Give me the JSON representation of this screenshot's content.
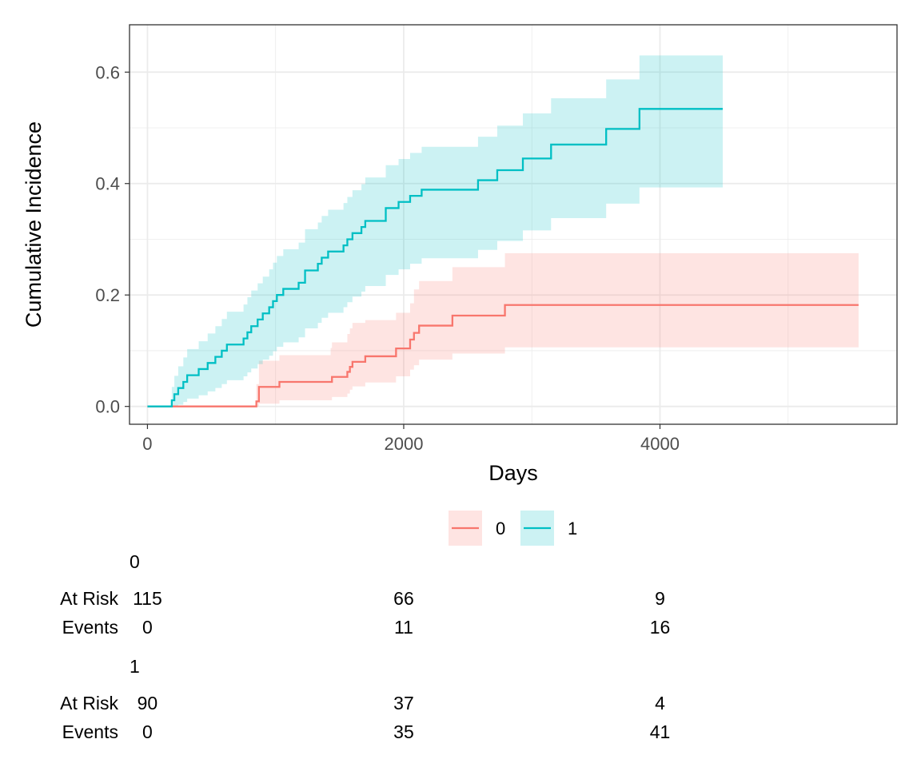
{
  "chart_data": {
    "type": "line",
    "subtype": "step-cumulative-incidence-with-ci",
    "xlabel": "Days",
    "ylabel": "Cumulative Incidence",
    "xlim": [
      -140,
      5850
    ],
    "ylim": [
      -0.032,
      0.685
    ],
    "x_ticks": [
      0,
      2000,
      4000
    ],
    "x_tick_labels": [
      "0",
      "2000",
      "4000"
    ],
    "x_minor_ticks": [
      1000,
      3000,
      5000
    ],
    "y_ticks": [
      0.0,
      0.2,
      0.4,
      0.6
    ],
    "y_tick_labels": [
      "0.0",
      "0.2",
      "0.4",
      "0.6"
    ],
    "y_minor_ticks": [
      0.1,
      0.3,
      0.5
    ],
    "grid": true,
    "legend_position": "bottom",
    "series": [
      {
        "name": "0",
        "color": "#F8766D",
        "fill": "#F8766D",
        "steps": [
          [
            0,
            0.0
          ],
          [
            820,
            0.0
          ],
          [
            850,
            0.009
          ],
          [
            870,
            0.035
          ],
          [
            1030,
            0.044
          ],
          [
            1430,
            0.044
          ],
          [
            1440,
            0.053
          ],
          [
            1560,
            0.062
          ],
          [
            1580,
            0.071
          ],
          [
            1600,
            0.08
          ],
          [
            1700,
            0.09
          ],
          [
            1940,
            0.104
          ],
          [
            2050,
            0.12
          ],
          [
            2080,
            0.132
          ],
          [
            2120,
            0.145
          ],
          [
            2380,
            0.163
          ],
          [
            2790,
            0.182
          ],
          [
            5550,
            0.182
          ]
        ],
        "ci_lower": [
          [
            0,
            0.0
          ],
          [
            820,
            0.0
          ],
          [
            850,
            0.0
          ],
          [
            870,
            0.005
          ],
          [
            1030,
            0.011
          ],
          [
            1430,
            0.011
          ],
          [
            1440,
            0.017
          ],
          [
            1560,
            0.023
          ],
          [
            1580,
            0.03
          ],
          [
            1600,
            0.036
          ],
          [
            1700,
            0.043
          ],
          [
            1940,
            0.054
          ],
          [
            2050,
            0.066
          ],
          [
            2080,
            0.074
          ],
          [
            2120,
            0.084
          ],
          [
            2380,
            0.095
          ],
          [
            2790,
            0.106
          ],
          [
            5550,
            0.106
          ]
        ],
        "ci_upper": [
          [
            0,
            0.0
          ],
          [
            820,
            0.0
          ],
          [
            850,
            0.04
          ],
          [
            870,
            0.082
          ],
          [
            1030,
            0.092
          ],
          [
            1430,
            0.105
          ],
          [
            1440,
            0.115
          ],
          [
            1560,
            0.13
          ],
          [
            1580,
            0.14
          ],
          [
            1600,
            0.15
          ],
          [
            1700,
            0.155
          ],
          [
            1940,
            0.168
          ],
          [
            2050,
            0.185
          ],
          [
            2080,
            0.21
          ],
          [
            2120,
            0.225
          ],
          [
            2380,
            0.25
          ],
          [
            2790,
            0.275
          ],
          [
            5550,
            0.275
          ]
        ]
      },
      {
        "name": "1",
        "color": "#00BFC4",
        "fill": "#00BFC4",
        "steps": [
          [
            0,
            0.0
          ],
          [
            180,
            0.0
          ],
          [
            190,
            0.011
          ],
          [
            210,
            0.022
          ],
          [
            240,
            0.033
          ],
          [
            280,
            0.044
          ],
          [
            310,
            0.056
          ],
          [
            400,
            0.067
          ],
          [
            470,
            0.078
          ],
          [
            530,
            0.089
          ],
          [
            580,
            0.1
          ],
          [
            620,
            0.111
          ],
          [
            750,
            0.122
          ],
          [
            780,
            0.133
          ],
          [
            810,
            0.144
          ],
          [
            860,
            0.156
          ],
          [
            900,
            0.167
          ],
          [
            950,
            0.178
          ],
          [
            980,
            0.189
          ],
          [
            1010,
            0.2
          ],
          [
            1060,
            0.211
          ],
          [
            1180,
            0.222
          ],
          [
            1230,
            0.244
          ],
          [
            1330,
            0.256
          ],
          [
            1360,
            0.267
          ],
          [
            1410,
            0.278
          ],
          [
            1530,
            0.289
          ],
          [
            1560,
            0.3
          ],
          [
            1600,
            0.311
          ],
          [
            1670,
            0.322
          ],
          [
            1700,
            0.333
          ],
          [
            1860,
            0.356
          ],
          [
            1960,
            0.367
          ],
          [
            2050,
            0.378
          ],
          [
            2140,
            0.389
          ],
          [
            2580,
            0.406
          ],
          [
            2730,
            0.424
          ],
          [
            2930,
            0.445
          ],
          [
            3150,
            0.47
          ],
          [
            3580,
            0.498
          ],
          [
            3840,
            0.534
          ],
          [
            4490,
            0.534
          ]
        ],
        "ci_lower": [
          [
            0,
            0.0
          ],
          [
            180,
            0.0
          ],
          [
            190,
            0.0
          ],
          [
            210,
            0.0
          ],
          [
            240,
            0.003
          ],
          [
            280,
            0.008
          ],
          [
            310,
            0.014
          ],
          [
            400,
            0.02
          ],
          [
            470,
            0.027
          ],
          [
            530,
            0.033
          ],
          [
            580,
            0.04
          ],
          [
            620,
            0.047
          ],
          [
            750,
            0.054
          ],
          [
            780,
            0.061
          ],
          [
            810,
            0.068
          ],
          [
            860,
            0.076
          ],
          [
            900,
            0.084
          ],
          [
            950,
            0.091
          ],
          [
            980,
            0.099
          ],
          [
            1010,
            0.107
          ],
          [
            1060,
            0.115
          ],
          [
            1180,
            0.124
          ],
          [
            1230,
            0.14
          ],
          [
            1330,
            0.15
          ],
          [
            1360,
            0.159
          ],
          [
            1410,
            0.168
          ],
          [
            1530,
            0.178
          ],
          [
            1560,
            0.187
          ],
          [
            1600,
            0.197
          ],
          [
            1670,
            0.206
          ],
          [
            1700,
            0.216
          ],
          [
            1860,
            0.236
          ],
          [
            1960,
            0.246
          ],
          [
            2050,
            0.256
          ],
          [
            2140,
            0.266
          ],
          [
            2580,
            0.281
          ],
          [
            2730,
            0.297
          ],
          [
            2930,
            0.316
          ],
          [
            3150,
            0.338
          ],
          [
            3580,
            0.364
          ],
          [
            3840,
            0.393
          ],
          [
            4490,
            0.393
          ]
        ],
        "ci_upper": [
          [
            0,
            0.0
          ],
          [
            180,
            0.0
          ],
          [
            190,
            0.035
          ],
          [
            210,
            0.055
          ],
          [
            240,
            0.072
          ],
          [
            280,
            0.088
          ],
          [
            310,
            0.103
          ],
          [
            400,
            0.117
          ],
          [
            470,
            0.131
          ],
          [
            530,
            0.144
          ],
          [
            580,
            0.157
          ],
          [
            620,
            0.17
          ],
          [
            750,
            0.183
          ],
          [
            780,
            0.196
          ],
          [
            810,
            0.208
          ],
          [
            860,
            0.221
          ],
          [
            900,
            0.233
          ],
          [
            950,
            0.246
          ],
          [
            980,
            0.258
          ],
          [
            1010,
            0.27
          ],
          [
            1060,
            0.282
          ],
          [
            1180,
            0.294
          ],
          [
            1230,
            0.318
          ],
          [
            1330,
            0.33
          ],
          [
            1360,
            0.342
          ],
          [
            1410,
            0.353
          ],
          [
            1530,
            0.365
          ],
          [
            1560,
            0.376
          ],
          [
            1600,
            0.388
          ],
          [
            1670,
            0.399
          ],
          [
            1700,
            0.411
          ],
          [
            1860,
            0.433
          ],
          [
            1960,
            0.444
          ],
          [
            2050,
            0.455
          ],
          [
            2140,
            0.466
          ],
          [
            2580,
            0.484
          ],
          [
            2730,
            0.504
          ],
          [
            2930,
            0.526
          ],
          [
            3150,
            0.553
          ],
          [
            3580,
            0.587
          ],
          [
            3840,
            0.63
          ],
          [
            4490,
            0.66
          ]
        ]
      }
    ]
  },
  "legend": {
    "items": [
      {
        "label": "0",
        "color": "#F8766D"
      },
      {
        "label": "1",
        "color": "#00BFC4"
      }
    ]
  },
  "risk_table": {
    "columns_at_days": [
      0,
      2000,
      4000
    ],
    "groups": [
      {
        "title": "0",
        "rows": [
          {
            "label": "At Risk",
            "values": [
              "115",
              "66",
              "9"
            ]
          },
          {
            "label": "Events",
            "values": [
              "0",
              "11",
              "16"
            ]
          }
        ]
      },
      {
        "title": "1",
        "rows": [
          {
            "label": "At Risk",
            "values": [
              "90",
              "37",
              "4"
            ]
          },
          {
            "label": "Events",
            "values": [
              "0",
              "35",
              "41"
            ]
          }
        ]
      }
    ]
  }
}
